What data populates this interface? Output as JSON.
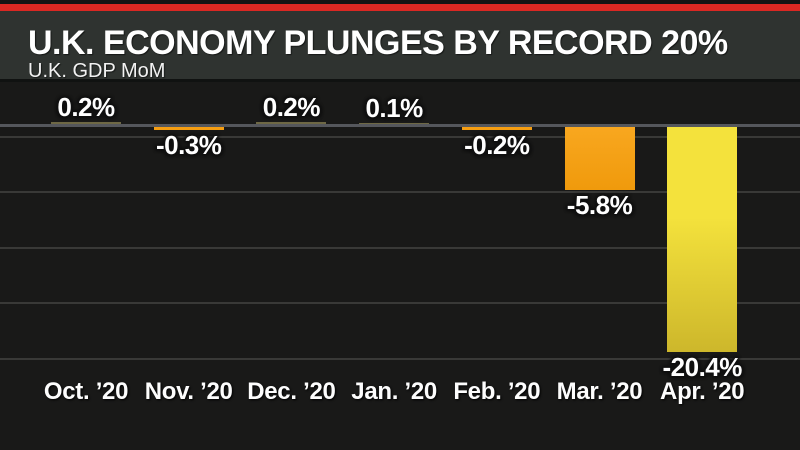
{
  "header": {
    "accent_bar_color": "#da2823",
    "background_color": "#2f3330",
    "title": "U.K. ECONOMY PLUNGES BY RECORD 20%",
    "subtitle": "U.K. GDP MoM"
  },
  "chart_data": {
    "type": "bar",
    "title": "U.K. ECONOMY PLUNGES BY RECORD 20%",
    "subtitle": "U.K. GDP MoM",
    "categories": [
      "Oct. ’20",
      "Nov. ’20",
      "Dec. ’20",
      "Jan. ’20",
      "Feb. ’20",
      "Mar. ’20",
      "Apr. ’20"
    ],
    "values": [
      0.2,
      -0.3,
      0.2,
      0.1,
      -0.2,
      -5.8,
      -20.4
    ],
    "value_labels": [
      "0.2%",
      "-0.3%",
      "0.2%",
      "0.1%",
      "-0.2%",
      "-5.8%",
      "-20.4%"
    ],
    "unit": "%",
    "xlabel": "",
    "ylabel": "",
    "ylim": [
      1.5,
      -22
    ],
    "gridlines_pct": [
      -1,
      -6,
      -11,
      -16,
      -21
    ],
    "gridlines_labeled": false,
    "legend_position": "none",
    "background_color": "#191918",
    "gridline_color": "#393937",
    "zero_line_color": "#55575c",
    "text_color": "#ffffff",
    "bar_colors": {
      "positive_dim": "#6e6845",
      "negative_orange": "#f59d11",
      "march_orange_top": "#f8a71f",
      "march_orange_bottom": "#f09a0c",
      "april_yellow_top": "#f4e23c",
      "april_yellow_bottom": "#cdb72b"
    },
    "bar_fill_keys": [
      "positive_dim",
      "negative_orange",
      "positive_dim",
      "positive_dim",
      "negative_orange",
      "march_orange",
      "april_yellow"
    ]
  }
}
